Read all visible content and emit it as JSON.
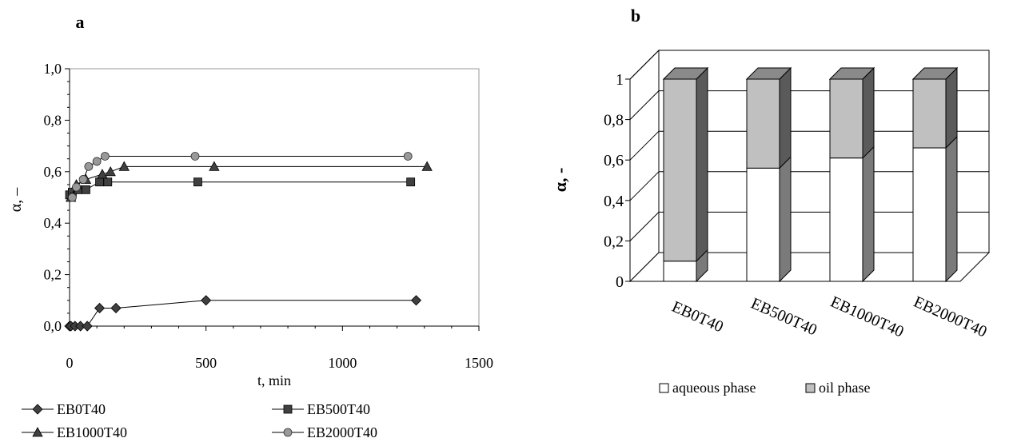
{
  "panels": {
    "a_label": "a",
    "b_label": "b"
  },
  "chart_data": [
    {
      "type": "scatter",
      "title": "",
      "xlabel": "t, min",
      "ylabel": "α, –",
      "xlim": [
        0,
        1500
      ],
      "ylim": [
        0,
        1.0
      ],
      "x_ticks": [
        "0",
        "500",
        "1000",
        "1500"
      ],
      "y_ticks": [
        "0,0",
        "0,2",
        "0,4",
        "0,6",
        "0,8",
        "1,0"
      ],
      "grid": false,
      "legend_position": "bottom",
      "series": [
        {
          "name": "EB0T40",
          "marker": "diamond",
          "color": "#404040",
          "points": [
            [
              0,
              0.0
            ],
            [
              5,
              0.0
            ],
            [
              20,
              0.0
            ],
            [
              40,
              0.0
            ],
            [
              65,
              0.0
            ],
            [
              110,
              0.07
            ],
            [
              170,
              0.07
            ],
            [
              500,
              0.1
            ],
            [
              1270,
              0.1
            ]
          ]
        },
        {
          "name": "EB500T40",
          "marker": "square",
          "color": "#404040",
          "points": [
            [
              0,
              0.51
            ],
            [
              10,
              0.52
            ],
            [
              30,
              0.53
            ],
            [
              60,
              0.53
            ],
            [
              110,
              0.56
            ],
            [
              140,
              0.56
            ],
            [
              470,
              0.56
            ],
            [
              1250,
              0.56
            ]
          ]
        },
        {
          "name": "EB1000T40",
          "marker": "triangle",
          "color": "#404040",
          "points": [
            [
              5,
              0.5
            ],
            [
              25,
              0.55
            ],
            [
              60,
              0.57
            ],
            [
              120,
              0.59
            ],
            [
              150,
              0.6
            ],
            [
              200,
              0.62
            ],
            [
              530,
              0.62
            ],
            [
              1310,
              0.62
            ]
          ]
        },
        {
          "name": "EB2000T40",
          "marker": "circle",
          "color": "#999999",
          "points": [
            [
              10,
              0.5
            ],
            [
              25,
              0.54
            ],
            [
              50,
              0.57
            ],
            [
              70,
              0.62
            ],
            [
              100,
              0.64
            ],
            [
              130,
              0.66
            ],
            [
              460,
              0.66
            ],
            [
              1240,
              0.66
            ]
          ]
        }
      ]
    },
    {
      "type": "bar",
      "stacked": true,
      "three_d": true,
      "title": "",
      "xlabel": "",
      "ylabel": "α, -",
      "ylim": [
        0,
        1
      ],
      "y_ticks": [
        "0",
        "0,2",
        "0,4",
        "0,6",
        "0,8",
        "1"
      ],
      "grid": true,
      "legend_position": "bottom",
      "categories": [
        "EB0T40",
        "EB500T40",
        "EB1000T40",
        "EB2000T40"
      ],
      "series": [
        {
          "name": "aqueous phase",
          "color": "#ffffff",
          "values": [
            0.1,
            0.56,
            0.61,
            0.66
          ]
        },
        {
          "name": "oil phase",
          "color": "#c0c0c0",
          "values": [
            0.9,
            0.44,
            0.39,
            0.34
          ]
        }
      ]
    }
  ]
}
